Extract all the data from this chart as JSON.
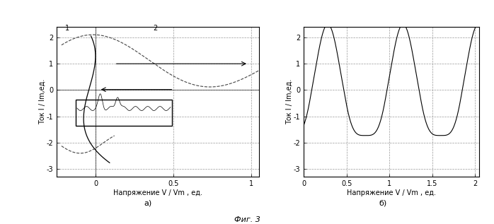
{
  "fig_width": 6.98,
  "fig_height": 3.17,
  "dpi": 100,
  "background": "#ffffff",
  "ax_a": {
    "xlim": [
      -0.25,
      1.05
    ],
    "ylim": [
      -3.3,
      2.4
    ],
    "xticks": [
      0,
      0.5,
      1.0
    ],
    "xticklabels": [
      "0",
      "0.5",
      "1"
    ],
    "yticks": [
      -3,
      -2,
      -1,
      0,
      1,
      2
    ],
    "yticklabels": [
      "-3",
      "-2",
      "-1",
      "0",
      "1",
      "2"
    ],
    "xlabel": "Напряжение V / Vm , ед.",
    "ylabel": "Ток I / Im,ед.",
    "sublabel": "а)",
    "label1": "1",
    "label2": "2",
    "grid_xticks": [
      0,
      0.5,
      1.0
    ],
    "grid_yticks": [
      -3,
      -2,
      -1,
      0,
      1,
      2
    ]
  },
  "ax_b": {
    "xlim": [
      0,
      2.05
    ],
    "ylim": [
      -3.3,
      2.4
    ],
    "xticks": [
      0,
      0.5,
      1.0,
      1.5,
      2.0
    ],
    "xticklabels": [
      "0",
      "0.5",
      "1",
      "1.5",
      "2"
    ],
    "yticks": [
      -3,
      -2,
      -1,
      0,
      1,
      2
    ],
    "yticklabels": [
      "-3",
      "-2",
      "-1",
      "0",
      "1",
      "2"
    ],
    "xlabel": "Напряжение V / Vm , ед.",
    "ylabel": "Ток I / Im,ед.",
    "sublabel": "б)",
    "grid_xticks": [
      0.5,
      1.0,
      1.5,
      2.0
    ],
    "grid_yticks": [
      -3,
      -2,
      -1,
      0,
      1,
      2
    ]
  },
  "caption": "Фиг. 3",
  "line_color": "#000000",
  "dashed_color": "#444444",
  "grid_color": "#999999",
  "tick_fontsize": 7,
  "label_fontsize": 7,
  "sublabel_fontsize": 8
}
